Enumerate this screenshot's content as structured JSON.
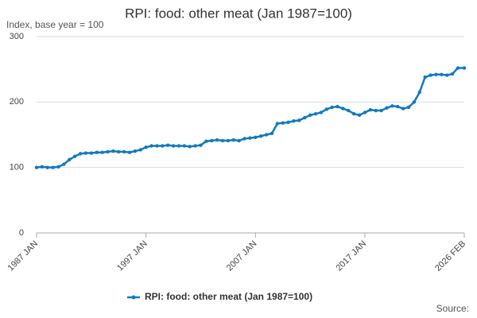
{
  "chart_data": {
    "type": "line",
    "title": "RPI: food: other meat (Jan 1987=100)",
    "subtitle": "Index, base year = 100",
    "source_label": "Source:",
    "x": [
      "1987-01",
      "1987-07",
      "1988-01",
      "1988-07",
      "1989-01",
      "1989-07",
      "1990-01",
      "1990-07",
      "1991-01",
      "1991-07",
      "1992-01",
      "1992-07",
      "1993-01",
      "1993-07",
      "1994-01",
      "1994-07",
      "1995-01",
      "1995-07",
      "1996-01",
      "1996-07",
      "1997-01",
      "1997-07",
      "1998-01",
      "1998-07",
      "1999-01",
      "1999-07",
      "2000-01",
      "2000-07",
      "2001-01",
      "2001-07",
      "2002-01",
      "2002-07",
      "2003-01",
      "2003-07",
      "2004-01",
      "2004-07",
      "2005-01",
      "2005-07",
      "2006-01",
      "2006-07",
      "2007-01",
      "2007-07",
      "2008-01",
      "2008-07",
      "2009-01",
      "2009-07",
      "2010-01",
      "2010-07",
      "2011-01",
      "2011-07",
      "2012-01",
      "2012-07",
      "2013-01",
      "2013-07",
      "2014-01",
      "2014-07",
      "2015-01",
      "2015-07",
      "2016-01",
      "2016-07",
      "2017-01",
      "2017-07",
      "2018-01",
      "2018-07",
      "2019-01",
      "2019-07",
      "2020-01",
      "2020-07",
      "2021-01",
      "2021-07",
      "2022-01",
      "2022-07",
      "2023-01",
      "2023-07",
      "2024-01",
      "2024-07",
      "2025-01",
      "2025-07",
      "2026-02"
    ],
    "series": [
      {
        "name": "RPI: food: other meat (Jan 1987=100)",
        "color": "#0f7ac0",
        "values": [
          100,
          101,
          100,
          100,
          101,
          105,
          112,
          117,
          121,
          122,
          122,
          123,
          123,
          124,
          125,
          124,
          124,
          123,
          125,
          127,
          131,
          133,
          133,
          133,
          134,
          133,
          133,
          133,
          132,
          133,
          134,
          140,
          141,
          142,
          141,
          141,
          142,
          141,
          144,
          145,
          146,
          148,
          150,
          152,
          167,
          168,
          169,
          171,
          172,
          176,
          180,
          182,
          184,
          189,
          192,
          193,
          190,
          187,
          182,
          180,
          184,
          188,
          187,
          187,
          191,
          194,
          193,
          190,
          192,
          200,
          215,
          238,
          241,
          242,
          242,
          241,
          243,
          252,
          252
        ]
      }
    ],
    "xlim": [
      "1987-01",
      "2026-02"
    ],
    "xticks": [
      {
        "value": "1987-01",
        "label": "1987 JAN"
      },
      {
        "value": "1997-01",
        "label": "1997 JAN"
      },
      {
        "value": "2007-01",
        "label": "2007 JAN"
      },
      {
        "value": "2017-01",
        "label": "2017 JAN"
      },
      {
        "value": "2026-02",
        "label": "2026 FEB"
      }
    ],
    "ylim": [
      0,
      300
    ],
    "yticks": [
      0,
      100,
      200,
      300
    ],
    "grid": true
  }
}
